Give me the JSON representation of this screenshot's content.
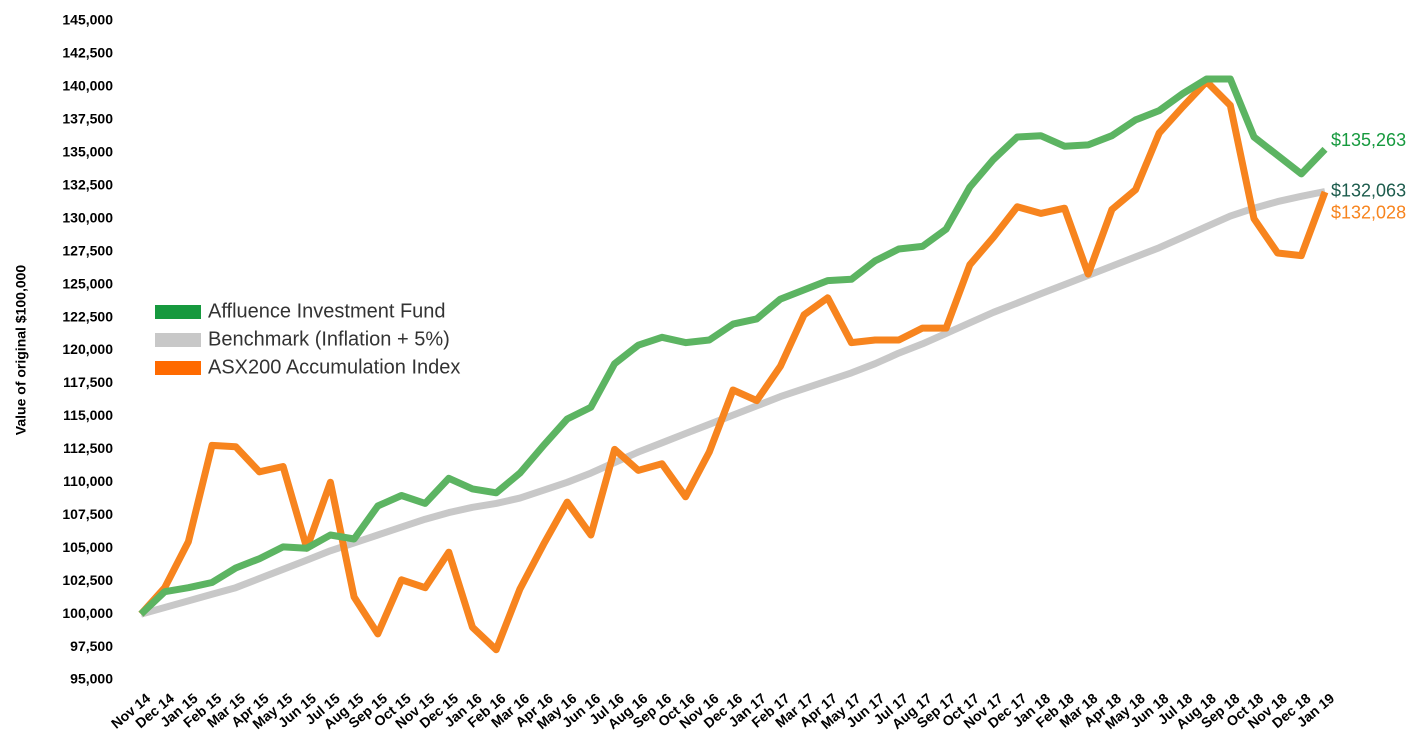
{
  "chart_data": {
    "type": "line",
    "y_axis_label": "Value of original $100,000",
    "categories": [
      "Nov 14",
      "Dec 14",
      "Jan 15",
      "Feb 15",
      "Mar 15",
      "Apr 15",
      "May 15",
      "Jun 15",
      "Jul 15",
      "Aug 15",
      "Sep 15",
      "Oct 15",
      "Nov 15",
      "Dec 15",
      "Jan 16",
      "Feb 16",
      "Mar 16",
      "Apr 16",
      "May 16",
      "Jun 16",
      "Jul 16",
      "Aug 16",
      "Sep 16",
      "Oct 16",
      "Nov 16",
      "Dec 16",
      "Jan 17",
      "Feb 17",
      "Mar 17",
      "Apr 17",
      "May 17",
      "Jun 17",
      "Jul 17",
      "Aug 17",
      "Sep 17",
      "Oct 17",
      "Nov 17",
      "Dec 17",
      "Jan 18",
      "Feb 18",
      "Mar 18",
      "Apr 18",
      "May 18",
      "Jun 18",
      "Jul 18",
      "Aug 18",
      "Sep 18",
      "Oct 18",
      "Nov 18",
      "Dec 18",
      "Jan 19"
    ],
    "ylim": [
      95000,
      145000
    ],
    "yticks": [
      {
        "value": 95000,
        "label": "95,000"
      },
      {
        "value": 97500,
        "label": "97,500"
      },
      {
        "value": 100000,
        "label": "100,000"
      },
      {
        "value": 102500,
        "label": "102,500"
      },
      {
        "value": 105000,
        "label": "105,000"
      },
      {
        "value": 107500,
        "label": "107,500"
      },
      {
        "value": 110000,
        "label": "110,000"
      },
      {
        "value": 112500,
        "label": "112,500"
      },
      {
        "value": 115000,
        "label": "115,000"
      },
      {
        "value": 117500,
        "label": "117,500"
      },
      {
        "value": 120000,
        "label": "120,000"
      },
      {
        "value": 122500,
        "label": "122,500"
      },
      {
        "value": 125000,
        "label": "125,000"
      },
      {
        "value": 127500,
        "label": "127,500"
      },
      {
        "value": 130000,
        "label": "130,000"
      },
      {
        "value": 132500,
        "label": "132,500"
      },
      {
        "value": 135000,
        "label": "135,000"
      },
      {
        "value": 137500,
        "label": "137,500"
      },
      {
        "value": 140000,
        "label": "140,000"
      },
      {
        "value": 142500,
        "label": "142,500"
      },
      {
        "value": 145000,
        "label": "145,000"
      }
    ],
    "grid": false,
    "legend": "left",
    "series": [
      {
        "name": "Affluence Investment Fund",
        "color": "#5cb462",
        "legend_color": "#16993e",
        "label_color": "#16993e",
        "end_label": "$135,263",
        "values": [
          100000,
          101700,
          102000,
          102400,
          103500,
          104200,
          105100,
          105000,
          106000,
          105700,
          108200,
          109000,
          108400,
          110300,
          109500,
          109200,
          110700,
          112800,
          114800,
          115700,
          119000,
          120400,
          121000,
          120600,
          120800,
          122000,
          122400,
          123900,
          124600,
          125300,
          125400,
          126800,
          127700,
          127900,
          129200,
          132400,
          134500,
          136200,
          136300,
          135500,
          135600,
          136300,
          137500,
          138200,
          139500,
          140600,
          140600,
          136200,
          134800,
          133400,
          135263
        ]
      },
      {
        "name": "Benchmark (Inflation + 5%)",
        "color": "#c8c8c8",
        "legend_color": "#c8c8c8",
        "label_color": "#1d5c4d",
        "end_label": "$132,063",
        "values": [
          100000,
          100500,
          101000,
          101500,
          102000,
          102700,
          103400,
          104100,
          104800,
          105400,
          106000,
          106600,
          107200,
          107700,
          108100,
          108400,
          108800,
          109400,
          110000,
          110700,
          111500,
          112300,
          113000,
          113700,
          114400,
          115100,
          115800,
          116500,
          117100,
          117700,
          118300,
          119000,
          119800,
          120500,
          121300,
          122100,
          122900,
          123600,
          124300,
          125000,
          125700,
          126400,
          127100,
          127800,
          128600,
          129400,
          130200,
          130800,
          131300,
          131700,
          132063
        ]
      },
      {
        "name": "ASX200 Accumulation Index",
        "color": "#f7841e",
        "legend_color": "#ff6a00",
        "label_color": "#f7841e",
        "end_label": "$132,028",
        "values": [
          100000,
          102000,
          105500,
          112800,
          112700,
          110800,
          111200,
          105000,
          110000,
          101300,
          98500,
          102600,
          102000,
          104700,
          99000,
          97300,
          101900,
          105300,
          108500,
          106000,
          112500,
          110900,
          111400,
          108900,
          112300,
          117000,
          116200,
          118800,
          122700,
          124000,
          120600,
          120800,
          120800,
          121700,
          121700,
          126500,
          128600,
          130900,
          130400,
          130800,
          125800,
          130700,
          132200,
          136500,
          138500,
          140400,
          138600,
          130000,
          127400,
          127200,
          132028
        ]
      }
    ]
  }
}
